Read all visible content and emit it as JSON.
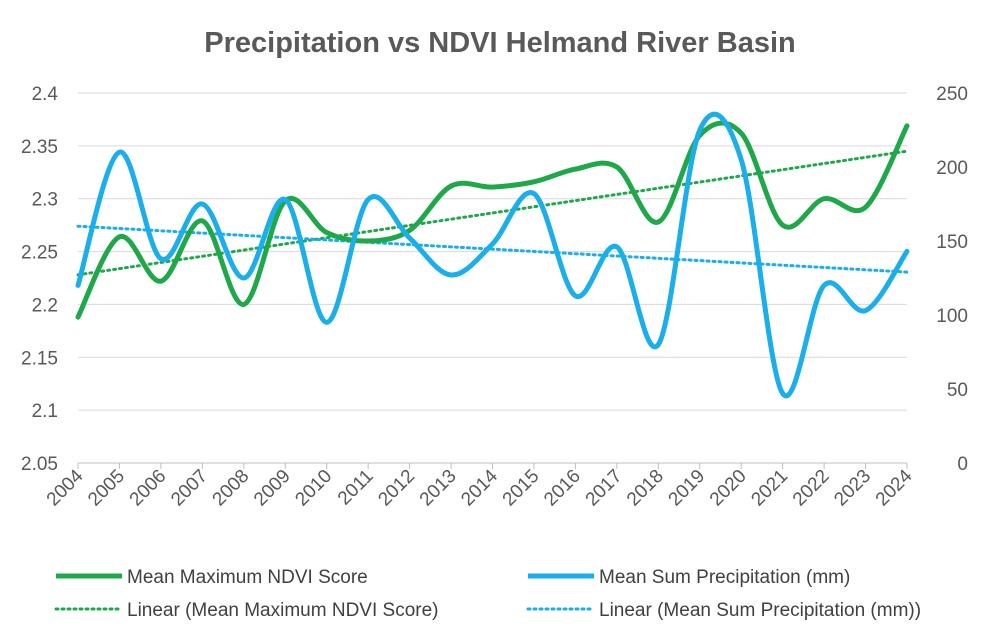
{
  "chart_data": {
    "type": "line",
    "title": "Precipitation vs NDVI Helmand River Basin",
    "x": [
      "2004",
      "2005",
      "2006",
      "2007",
      "2008",
      "2009",
      "2010",
      "2011",
      "2012",
      "2013",
      "2014",
      "2015",
      "2016",
      "2017",
      "2018",
      "2019",
      "2020",
      "2021",
      "2022",
      "2023",
      "2024"
    ],
    "y_left": {
      "min": 2.05,
      "max": 2.4,
      "step": 0.05,
      "ticks": [
        "2.4",
        "2.35",
        "2.3",
        "2.25",
        "2.2",
        "2.15",
        "2.1",
        "2.05"
      ]
    },
    "y_right": {
      "min": 0,
      "max": 250,
      "step": 50,
      "ticks": [
        "250",
        "200",
        "150",
        "100",
        "50",
        "0"
      ]
    },
    "series": [
      {
        "name": "Mean Maximum NDVI Score",
        "axis": "left",
        "color": "#1fa84a",
        "values": [
          2.188,
          2.264,
          2.222,
          2.279,
          2.2,
          2.298,
          2.268,
          2.26,
          2.27,
          2.312,
          2.311,
          2.316,
          2.328,
          2.33,
          2.278,
          2.36,
          2.362,
          2.275,
          2.3,
          2.292,
          2.369
        ]
      },
      {
        "name": "Mean Sum Precipitation (mm)",
        "axis": "right",
        "color": "#1aaeea",
        "values": [
          120,
          210,
          138,
          175,
          125,
          178,
          95,
          178,
          152,
          127,
          148,
          182,
          113,
          146,
          80,
          225,
          205,
          47,
          120,
          103,
          143
        ]
      }
    ],
    "trendlines": [
      {
        "name": "Linear (Mean Maximum NDVI Score)",
        "axis": "left",
        "color": "#1fa84a",
        "start": 2.228,
        "end": 2.345
      },
      {
        "name": "Linear (Mean Sum Precipitation (mm))",
        "axis": "right",
        "color": "#1aaeea",
        "start": 160,
        "end": 129
      }
    ],
    "legend": {
      "position": "bottom",
      "items": [
        "Mean Maximum NDVI Score",
        "Mean Sum Precipitation (mm)",
        "Linear (Mean Maximum NDVI Score)",
        "Linear (Mean Sum Precipitation (mm))"
      ]
    },
    "grid": true
  }
}
